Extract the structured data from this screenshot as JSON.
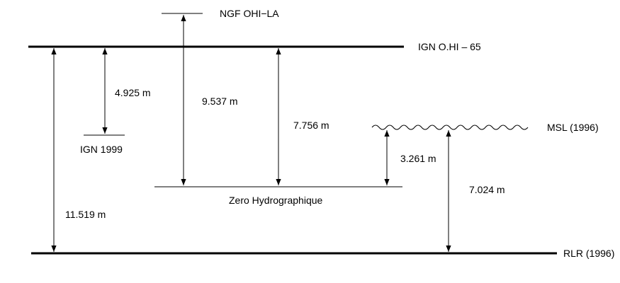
{
  "levels": {
    "ngf": "NGF OHI−LA",
    "ign_ohi65": "IGN O.HI – 65",
    "msl": "MSL (1996)",
    "ign1999": "IGN 1999",
    "zero_hydro": "Zero Hydrographique",
    "rlr": "RLR (1996)"
  },
  "measurements": {
    "ign1999_to_ohi65": "4.925 m",
    "ngf_to_zero": "9.537 m",
    "ohi65_to_zero": "7.756 m",
    "msl_to_zero": "3.261 m",
    "rlr_to_msl": "7.024 m",
    "rlr_to_ohi65": "11.519 m"
  },
  "colors": {
    "ink": "#000000",
    "background": "#ffffff"
  }
}
